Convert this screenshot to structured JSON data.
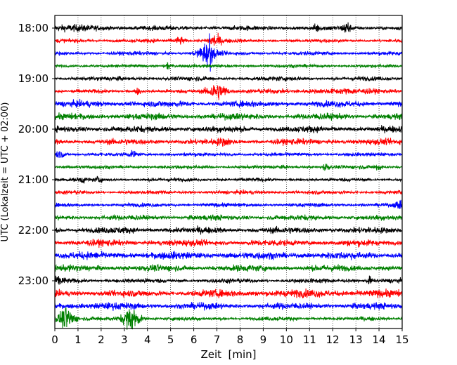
{
  "chart_data": {
    "type": "line",
    "subtype": "helicorder",
    "title": "",
    "xlabel": "Zeit  [min]",
    "ylabel": "UTC (Lokalzeit = UTC + 02:00)",
    "xlim": [
      0,
      15
    ],
    "x_ticks": [
      "0",
      "1",
      "2",
      "3",
      "4",
      "5",
      "6",
      "7",
      "8",
      "9",
      "10",
      "11",
      "12",
      "13",
      "14",
      "15"
    ],
    "y_ticks": [
      "18:00",
      "19:00",
      "20:00",
      "21:00",
      "22:00",
      "23:00"
    ],
    "grid": "vertical dotted",
    "line_minutes": 15,
    "color_cycle": [
      "#000000",
      "#ff0000",
      "#0000ff",
      "#008000"
    ],
    "amplitude_units": "relative (1 = line spacing)",
    "traces": [
      {
        "start": "18:00",
        "noise": 0.22,
        "events": [
          {
            "t": 0.8,
            "amp": 0.12,
            "dur": 2.2
          },
          {
            "t": 11.3,
            "amp": 0.35,
            "dur": 0.15
          },
          {
            "t": 12.6,
            "amp": 0.6,
            "dur": 0.2
          }
        ]
      },
      {
        "start": "18:15",
        "noise": 0.17,
        "events": [
          {
            "t": 5.4,
            "amp": 0.35,
            "dur": 0.3
          },
          {
            "t": 6.9,
            "amp": 0.55,
            "dur": 0.4
          }
        ]
      },
      {
        "start": "18:30",
        "noise": 0.18,
        "events": [
          {
            "t": 6.55,
            "amp": 1.0,
            "dur": 0.5
          },
          {
            "t": 6.7,
            "amp": 2.1,
            "dur": 0.05
          }
        ]
      },
      {
        "start": "18:45",
        "noise": 0.15,
        "events": [
          {
            "t": 4.9,
            "amp": 0.35,
            "dur": 0.2
          }
        ]
      },
      {
        "start": "19:00",
        "noise": 0.2,
        "events": []
      },
      {
        "start": "19:15",
        "noise": 0.17,
        "events": [
          {
            "t": 3.6,
            "amp": 0.3,
            "dur": 0.2
          },
          {
            "t": 7.0,
            "amp": 0.8,
            "dur": 0.6
          },
          {
            "t": 12.5,
            "amp": 0.12,
            "dur": 5
          }
        ]
      },
      {
        "start": "19:30",
        "noise": 0.3,
        "events": []
      },
      {
        "start": "19:45",
        "noise": 0.3,
        "events": []
      },
      {
        "start": "20:00",
        "noise": 0.3,
        "events": []
      },
      {
        "start": "20:15",
        "noise": 0.28,
        "events": [
          {
            "t": 7.3,
            "amp": 0.2,
            "dur": 0.4
          }
        ]
      },
      {
        "start": "20:30",
        "noise": 0.17,
        "events": [
          {
            "t": 0.2,
            "amp": 0.3,
            "dur": 0.4
          },
          {
            "t": 3.4,
            "amp": 0.3,
            "dur": 0.2
          }
        ]
      },
      {
        "start": "20:45",
        "noise": 0.17,
        "events": [
          {
            "t": 11.7,
            "amp": 0.35,
            "dur": 0.2
          },
          {
            "t": 14.0,
            "amp": 0.3,
            "dur": 0.2
          }
        ]
      },
      {
        "start": "21:00",
        "noise": 0.17,
        "events": [
          {
            "t": 1.2,
            "amp": 0.25,
            "dur": 0.15
          },
          {
            "t": 1.9,
            "amp": 0.3,
            "dur": 0.15
          }
        ]
      },
      {
        "start": "21:15",
        "noise": 0.18,
        "events": []
      },
      {
        "start": "21:30",
        "noise": 0.18,
        "events": [
          {
            "t": 14.9,
            "amp": 0.3,
            "dur": 0.3
          }
        ]
      },
      {
        "start": "21:45",
        "noise": 0.25,
        "events": []
      },
      {
        "start": "22:00",
        "noise": 0.3,
        "events": []
      },
      {
        "start": "22:15",
        "noise": 0.3,
        "events": []
      },
      {
        "start": "22:30",
        "noise": 0.35,
        "events": []
      },
      {
        "start": "22:45",
        "noise": 0.3,
        "events": []
      },
      {
        "start": "23:00",
        "noise": 0.22,
        "events": [
          {
            "t": 0.2,
            "amp": 0.3,
            "dur": 0.3
          },
          {
            "t": 13.6,
            "amp": 0.35,
            "dur": 0.15
          }
        ]
      },
      {
        "start": "23:15",
        "noise": 0.3,
        "events": [
          {
            "t": 11,
            "amp": 0.08,
            "dur": 8
          }
        ]
      },
      {
        "start": "23:30",
        "noise": 0.3,
        "events": [
          {
            "t": 1.5,
            "amp": 0.05,
            "dur": 3
          }
        ]
      },
      {
        "start": "23:45",
        "noise": 0.18,
        "events": [
          {
            "t": 0.5,
            "amp": 1.0,
            "dur": 0.5
          },
          {
            "t": 3.3,
            "amp": 1.1,
            "dur": 0.5
          }
        ]
      }
    ]
  }
}
